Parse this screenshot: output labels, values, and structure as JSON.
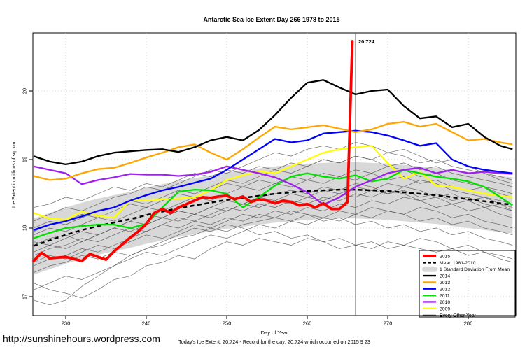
{
  "page": {
    "title": "Antarctic Sea Ice Extent Day 266 1978 to 2015",
    "url_watermark": "http://sunshinehours.wordpress.com",
    "footer_line": "Today's Ice Extent: 20.724  - Record for the day: 20.724 which occurred on 2015 9 23"
  },
  "chart_data": {
    "type": "line",
    "title": "Antarctic Sea Ice Extent Day 266 1978 to 2015",
    "xlabel": "Day of Year",
    "ylabel": "Ice Extent in millions of sq. km.",
    "xlim": [
      225.9,
      285.9
    ],
    "ylim": [
      16.7,
      20.85
    ],
    "xticks": [
      230,
      240,
      250,
      260,
      270,
      280
    ],
    "yticks": [
      17,
      18,
      19,
      20
    ],
    "grid": true,
    "legend_position": "bottom-right",
    "vertical_line_day": 266,
    "annotation": {
      "text": "20.724",
      "day": 266,
      "value": 20.724,
      "color": "#FF0000"
    },
    "x": [
      226,
      228,
      230,
      232,
      234,
      236,
      238,
      240,
      242,
      244,
      246,
      248,
      250,
      252,
      254,
      256,
      258,
      260,
      262,
      264,
      266,
      268,
      270,
      272,
      274,
      276,
      278,
      280,
      282,
      284,
      285.5
    ],
    "band": {
      "name": "1 Standard Deviation From Mean",
      "color": "#D8D8D8",
      "upper": [
        18.14,
        18.22,
        18.3,
        18.37,
        18.43,
        18.48,
        18.53,
        18.59,
        18.64,
        18.69,
        18.73,
        18.77,
        18.81,
        18.84,
        18.87,
        18.9,
        18.92,
        18.94,
        18.95,
        18.96,
        18.96,
        18.95,
        18.94,
        18.92,
        18.9,
        18.88,
        18.85,
        18.82,
        18.79,
        18.76,
        18.74
      ],
      "lower": [
        17.32,
        17.4,
        17.48,
        17.55,
        17.61,
        17.66,
        17.71,
        17.77,
        17.82,
        17.87,
        17.91,
        17.95,
        17.99,
        18.02,
        18.05,
        18.08,
        18.1,
        18.12,
        18.13,
        18.14,
        18.14,
        18.13,
        18.12,
        18.1,
        18.08,
        18.06,
        18.03,
        18.0,
        17.97,
        17.94,
        17.92
      ]
    },
    "mean": {
      "name": "Mean 1981-2010",
      "color": "#000000",
      "style": "dashed",
      "values": [
        17.74,
        17.82,
        17.9,
        17.97,
        18.03,
        18.08,
        18.13,
        18.19,
        18.24,
        18.29,
        18.33,
        18.37,
        18.41,
        18.44,
        18.47,
        18.5,
        18.52,
        18.54,
        18.55,
        18.56,
        18.56,
        18.55,
        18.54,
        18.52,
        18.5,
        18.48,
        18.45,
        18.42,
        18.39,
        18.36,
        18.34
      ]
    },
    "series": [
      {
        "name": "2009",
        "color": "#FFFF00",
        "values": [
          18.22,
          18.14,
          18.12,
          18.24,
          18.18,
          18.15,
          18.4,
          18.4,
          18.42,
          18.43,
          18.45,
          18.55,
          18.7,
          18.77,
          18.83,
          18.8,
          18.9,
          19.0,
          19.1,
          19.15,
          19.18,
          19.2,
          18.95,
          18.72,
          18.82,
          18.62,
          18.6,
          18.55,
          18.5,
          18.47,
          18.45
        ]
      },
      {
        "name": "2011",
        "color": "#00E000",
        "values": [
          17.85,
          17.93,
          18.0,
          18.03,
          18.05,
          18.05,
          18.0,
          18.06,
          18.3,
          18.53,
          18.56,
          18.55,
          18.5,
          18.3,
          18.45,
          18.62,
          18.75,
          18.8,
          18.75,
          18.72,
          18.77,
          18.68,
          18.72,
          18.85,
          18.8,
          18.75,
          18.72,
          18.68,
          18.6,
          18.45,
          18.33
        ]
      },
      {
        "name": "2010",
        "color": "#A020F0",
        "values": [
          18.9,
          18.85,
          18.8,
          18.64,
          18.7,
          18.74,
          18.79,
          18.78,
          18.78,
          18.76,
          18.78,
          18.82,
          18.9,
          18.85,
          18.8,
          18.74,
          18.64,
          18.52,
          18.34,
          18.45,
          18.6,
          18.7,
          18.8,
          18.85,
          18.88,
          18.8,
          18.85,
          18.8,
          18.82,
          18.8,
          18.79
        ]
      },
      {
        "name": "2012",
        "color": "#0000FF",
        "values": [
          17.97,
          18.05,
          18.1,
          18.17,
          18.25,
          18.3,
          18.4,
          18.48,
          18.55,
          18.6,
          18.66,
          18.72,
          18.85,
          19.0,
          19.15,
          19.3,
          19.25,
          19.28,
          19.38,
          19.4,
          19.42,
          19.4,
          19.35,
          19.28,
          19.2,
          19.24,
          19.0,
          18.9,
          18.85,
          18.82,
          18.8
        ]
      },
      {
        "name": "2013",
        "color": "#FFA500",
        "values": [
          18.76,
          18.7,
          18.72,
          18.8,
          18.86,
          18.88,
          18.95,
          19.03,
          19.1,
          19.18,
          19.22,
          19.1,
          19.0,
          19.15,
          19.32,
          19.48,
          19.44,
          19.47,
          19.5,
          19.45,
          19.4,
          19.44,
          19.52,
          19.55,
          19.48,
          19.52,
          19.4,
          19.28,
          19.3,
          19.25,
          19.22
        ]
      },
      {
        "name": "2014",
        "color": "#000000",
        "values": [
          19.05,
          18.97,
          18.93,
          18.97,
          19.05,
          19.1,
          19.12,
          19.14,
          19.15,
          19.11,
          19.18,
          19.28,
          19.33,
          19.28,
          19.43,
          19.65,
          19.9,
          20.12,
          20.16,
          20.05,
          19.95,
          20.0,
          20.02,
          19.78,
          19.6,
          19.63,
          19.47,
          19.52,
          19.33,
          19.2,
          19.15
        ]
      }
    ],
    "series_2015": {
      "name": "2015",
      "color": "#FF0000",
      "x": [
        226,
        227,
        228,
        230,
        232,
        233,
        234,
        235,
        236,
        237,
        238,
        239,
        240,
        241,
        242,
        243,
        244,
        245,
        246,
        247,
        248,
        249,
        250,
        251,
        252,
        253,
        254,
        255,
        256,
        257,
        258,
        259,
        260,
        261,
        262,
        263,
        264,
        265,
        265.6
      ],
      "values": [
        17.52,
        17.64,
        17.56,
        17.58,
        17.52,
        17.62,
        17.58,
        17.54,
        17.66,
        17.76,
        17.86,
        17.95,
        18.06,
        18.22,
        18.28,
        18.22,
        18.3,
        18.35,
        18.4,
        18.45,
        18.44,
        18.46,
        18.47,
        18.42,
        18.46,
        18.38,
        18.42,
        18.4,
        18.36,
        18.4,
        18.38,
        18.33,
        18.35,
        18.3,
        18.36,
        18.28,
        18.28,
        18.38,
        20.724
      ]
    },
    "every_other_year": {
      "name": "Every Other Year",
      "color": "#4a4a4a",
      "series": [
        [
          16.95,
          16.88,
          16.95,
          17.15,
          17.3,
          17.45,
          17.6,
          17.7,
          17.75,
          17.85,
          17.9,
          18.0,
          17.95,
          18.05,
          18.1,
          18.15,
          18.1,
          18.2,
          18.15,
          18.25,
          18.2,
          18.3,
          18.25,
          18.2,
          18.3,
          18.25,
          18.15,
          18.2,
          18.1,
          18.05,
          18.0
        ],
        [
          17.2,
          17.1,
          17.05,
          16.98,
          17.1,
          17.25,
          17.3,
          17.45,
          17.5,
          17.6,
          17.55,
          17.7,
          17.8,
          17.75,
          17.85,
          17.8,
          17.75,
          17.85,
          17.8,
          17.7,
          17.75,
          17.7,
          17.8,
          17.75,
          17.85,
          17.8,
          17.7,
          17.75,
          17.65,
          17.6,
          17.55
        ],
        [
          17.35,
          17.45,
          17.5,
          17.6,
          17.55,
          17.65,
          17.6,
          17.7,
          17.8,
          17.9,
          18.0,
          17.95,
          18.05,
          18.0,
          17.9,
          17.95,
          17.85,
          17.9,
          17.8,
          17.85,
          17.75,
          17.8,
          17.7,
          17.75,
          17.7,
          17.65,
          17.7,
          17.6,
          17.65,
          17.55,
          17.5
        ],
        [
          17.5,
          17.6,
          17.55,
          17.65,
          17.75,
          17.7,
          17.8,
          17.9,
          17.85,
          17.95,
          18.05,
          18.0,
          18.1,
          18.2,
          18.15,
          18.25,
          18.2,
          18.3,
          18.25,
          18.35,
          18.3,
          18.4,
          18.35,
          18.45,
          18.4,
          18.3,
          18.35,
          18.25,
          18.3,
          18.2,
          18.15
        ],
        [
          17.6,
          17.7,
          17.75,
          17.85,
          17.8,
          17.9,
          18.0,
          17.95,
          18.05,
          18.15,
          18.1,
          18.2,
          18.3,
          18.25,
          18.35,
          18.3,
          18.4,
          18.35,
          18.45,
          18.4,
          18.5,
          18.45,
          18.55,
          18.5,
          18.4,
          18.45,
          18.35,
          18.4,
          18.3,
          18.35,
          18.25
        ],
        [
          17.75,
          17.85,
          17.9,
          17.8,
          17.9,
          18.0,
          18.1,
          18.05,
          18.15,
          18.25,
          18.2,
          18.3,
          18.4,
          18.35,
          18.45,
          18.5,
          18.55,
          18.5,
          18.6,
          18.55,
          18.65,
          18.6,
          18.5,
          18.55,
          18.45,
          18.5,
          18.4,
          18.45,
          18.35,
          18.3,
          18.25
        ],
        [
          17.9,
          18.0,
          17.95,
          18.05,
          18.15,
          18.1,
          18.2,
          18.3,
          18.25,
          18.35,
          18.45,
          18.4,
          18.5,
          18.6,
          18.55,
          18.65,
          18.6,
          18.7,
          18.65,
          18.75,
          18.7,
          18.8,
          18.7,
          18.75,
          18.65,
          18.7,
          18.6,
          18.55,
          18.6,
          18.5,
          18.45
        ],
        [
          18.0,
          18.1,
          18.05,
          18.15,
          18.25,
          18.3,
          18.4,
          18.35,
          18.45,
          18.55,
          18.5,
          18.6,
          18.7,
          18.65,
          18.75,
          18.85,
          18.8,
          18.9,
          19.0,
          18.95,
          19.05,
          19.0,
          19.1,
          19.05,
          18.95,
          19.0,
          18.9,
          18.85,
          18.8,
          18.7,
          18.65
        ],
        [
          18.1,
          18.2,
          18.3,
          18.25,
          18.35,
          18.45,
          18.5,
          18.6,
          18.55,
          18.65,
          18.75,
          18.85,
          18.8,
          18.9,
          19.0,
          19.1,
          19.05,
          19.15,
          19.2,
          19.15,
          19.25,
          19.2,
          19.1,
          19.15,
          19.05,
          18.95,
          19.0,
          18.9,
          18.8,
          18.75,
          18.7
        ],
        [
          17.45,
          17.55,
          17.6,
          17.7,
          17.65,
          17.75,
          17.85,
          17.95,
          18.05,
          18.0,
          18.1,
          18.05,
          18.15,
          18.1,
          18.2,
          18.15,
          18.25,
          18.2,
          18.1,
          18.15,
          18.05,
          18.1,
          18.0,
          18.05,
          17.95,
          18.0,
          17.9,
          17.95,
          17.85,
          17.8,
          17.75
        ],
        [
          17.8,
          17.75,
          17.85,
          17.95,
          17.9,
          18.0,
          18.1,
          18.2,
          18.15,
          18.25,
          18.2,
          18.3,
          18.25,
          18.35,
          18.45,
          18.4,
          18.5,
          18.45,
          18.55,
          18.5,
          18.6,
          18.55,
          18.65,
          18.6,
          18.7,
          18.65,
          18.55,
          18.5,
          18.45,
          18.4,
          18.35
        ],
        [
          17.65,
          17.75,
          17.7,
          17.8,
          17.9,
          18.0,
          17.95,
          18.05,
          18.15,
          18.1,
          18.2,
          18.15,
          18.25,
          18.35,
          18.3,
          18.4,
          18.35,
          18.45,
          18.4,
          18.5,
          18.45,
          18.55,
          18.5,
          18.6,
          18.55,
          18.45,
          18.5,
          18.4,
          18.45,
          18.35,
          18.3
        ],
        [
          17.1,
          17.2,
          17.3,
          17.25,
          17.35,
          17.45,
          17.55,
          17.65,
          17.6,
          17.7,
          17.8,
          17.9,
          17.85,
          17.95,
          18.05,
          18.0,
          18.1,
          18.05,
          18.15,
          18.1,
          18.2,
          18.15,
          18.25,
          18.2,
          18.1,
          18.15,
          18.05,
          18.1,
          18.0,
          17.95,
          17.9
        ],
        [
          17.95,
          18.05,
          18.1,
          18.2,
          18.15,
          18.25,
          18.35,
          18.3,
          18.4,
          18.5,
          18.45,
          18.55,
          18.65,
          18.6,
          18.7,
          18.65,
          18.75,
          18.7,
          18.8,
          18.75,
          18.85,
          18.8,
          18.9,
          18.85,
          18.75,
          18.8,
          18.7,
          18.65,
          18.6,
          18.55,
          18.5
        ],
        [
          18.3,
          18.35,
          18.45,
          18.4,
          18.5,
          18.6,
          18.55,
          18.65,
          18.6,
          18.7,
          18.8,
          18.75,
          18.85,
          18.8,
          18.9,
          18.85,
          18.95,
          18.9,
          19.0,
          18.95,
          19.05,
          19.0,
          18.9,
          18.95,
          18.85,
          18.9,
          18.8,
          18.75,
          18.7,
          18.65,
          18.6
        ]
      ]
    },
    "legend": {
      "entries": [
        {
          "label": "2015",
          "color": "#FF0000",
          "type": "thick"
        },
        {
          "label": "Mean 1981-2010",
          "color": "#000000",
          "type": "dashed"
        },
        {
          "label": "1 Standard Deviation From Mean",
          "color": "#D8D8D8",
          "type": "band"
        },
        {
          "label": "2014",
          "color": "#000000",
          "type": "line"
        },
        {
          "label": "2013",
          "color": "#FFA500",
          "type": "line"
        },
        {
          "label": "2012",
          "color": "#0000FF",
          "type": "line"
        },
        {
          "label": "2011",
          "color": "#00E000",
          "type": "line"
        },
        {
          "label": "2010",
          "color": "#A020F0",
          "type": "line"
        },
        {
          "label": "2009",
          "color": "#FFFF00",
          "type": "line"
        },
        {
          "label": "Every Other Year",
          "color": "#4a4a4a",
          "type": "thin"
        }
      ]
    }
  }
}
